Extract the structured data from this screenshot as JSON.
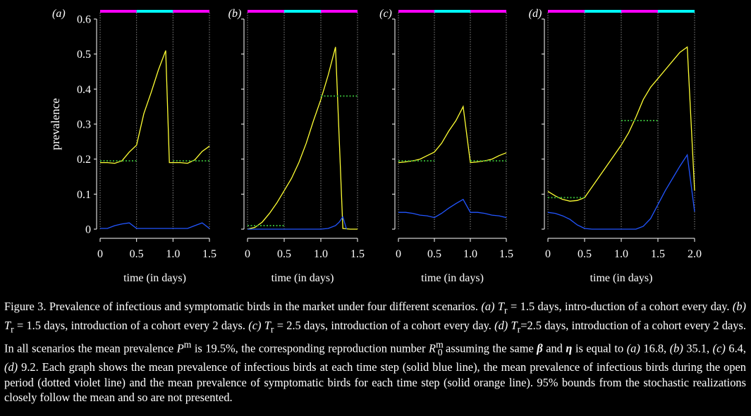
{
  "figure": {
    "ylabel": "prevalence",
    "xlabel": "time (in days)",
    "yticks": [
      "0",
      "0.1",
      "0.2",
      "0.3",
      "0.4",
      "0.5",
      "0.6"
    ],
    "colors": {
      "background": "#000000",
      "symptomatic": "#ffff33",
      "infectious": "#2255ff",
      "open_mean": "#33aa33",
      "bar_magenta": "#ff00ff",
      "bar_cyan": "#00ffff",
      "period_divider": "#aaaaaa"
    }
  },
  "chart_data": [
    {
      "type": "line",
      "panel_label": "(a)",
      "xlim": [
        0,
        1.5
      ],
      "ylim": [
        0,
        0.6
      ],
      "xticks": [
        "0",
        "0.5",
        "1.0",
        "1.5"
      ],
      "period_bars": [
        "magenta",
        "cyan",
        "magenta"
      ],
      "period_dividers": [
        0.5,
        1.0
      ],
      "series": [
        {
          "role": "symptomatic",
          "x": [
            0,
            0.1,
            0.2,
            0.3,
            0.4,
            0.5,
            0.6,
            0.7,
            0.8,
            0.9,
            0.95,
            1.0,
            1.1,
            1.2,
            1.3,
            1.4,
            1.5
          ],
          "y": [
            0.19,
            0.19,
            0.188,
            0.195,
            0.22,
            0.24,
            0.33,
            0.39,
            0.455,
            0.51,
            0.19,
            0.19,
            0.19,
            0.188,
            0.198,
            0.222,
            0.237
          ]
        },
        {
          "role": "infectious",
          "x": [
            0,
            0.1,
            0.2,
            0.3,
            0.4,
            0.5,
            0.6,
            0.8,
            1.0,
            1.2,
            1.3,
            1.4,
            1.5
          ],
          "y": [
            0.002,
            0.002,
            0.01,
            0.015,
            0.018,
            0.002,
            0.002,
            0.002,
            0.002,
            0.002,
            0.01,
            0.018,
            0.002
          ]
        },
        {
          "role": "open_mean",
          "segments": [
            {
              "x": [
                0,
                0.5
              ],
              "y": 0.195
            },
            {
              "x": [
                1.0,
                1.5
              ],
              "y": 0.195
            }
          ]
        }
      ]
    },
    {
      "type": "line",
      "panel_label": "(b)",
      "xlim": [
        0,
        1.5
      ],
      "ylim": [
        0,
        0.6
      ],
      "xticks": [
        "0",
        "0.5",
        "1.0",
        "1.5"
      ],
      "period_bars": [
        "magenta",
        "cyan",
        "magenta"
      ],
      "period_dividers": [
        0.5,
        1.0
      ],
      "series": [
        {
          "role": "symptomatic",
          "x": [
            0,
            0.1,
            0.2,
            0.3,
            0.4,
            0.5,
            0.6,
            0.7,
            0.8,
            0.9,
            1.0,
            1.1,
            1.2,
            1.3,
            1.4,
            1.5
          ],
          "y": [
            0.0,
            0.005,
            0.02,
            0.045,
            0.075,
            0.11,
            0.145,
            0.19,
            0.245,
            0.31,
            0.37,
            0.44,
            0.52,
            0.002,
            0.0,
            0.0
          ]
        },
        {
          "role": "infectious",
          "x": [
            0,
            0.2,
            0.4,
            0.6,
            0.8,
            1.0,
            1.1,
            1.2,
            1.25,
            1.3,
            1.35
          ],
          "y": [
            0.0,
            0.0,
            0.0,
            0.0,
            0.0,
            0.0,
            0.002,
            0.01,
            0.02,
            0.035,
            0.0
          ]
        },
        {
          "role": "open_mean",
          "segments": [
            {
              "x": [
                0,
                0.5
              ],
              "y": 0.01
            },
            {
              "x": [
                1.0,
                1.5
              ],
              "y": 0.38
            }
          ]
        }
      ]
    },
    {
      "type": "line",
      "panel_label": "(c)",
      "xlim": [
        0,
        1.5
      ],
      "ylim": [
        0,
        0.6
      ],
      "xticks": [
        "0",
        "0.5",
        "1.0",
        "1.5"
      ],
      "period_bars": [
        "magenta",
        "cyan",
        "magenta"
      ],
      "period_dividers": [
        0.5,
        1.0
      ],
      "series": [
        {
          "role": "symptomatic",
          "x": [
            0,
            0.1,
            0.2,
            0.3,
            0.4,
            0.5,
            0.6,
            0.7,
            0.8,
            0.9,
            1.0,
            1.1,
            1.2,
            1.3,
            1.4,
            1.5
          ],
          "y": [
            0.19,
            0.192,
            0.195,
            0.2,
            0.21,
            0.22,
            0.245,
            0.28,
            0.31,
            0.35,
            0.19,
            0.192,
            0.195,
            0.2,
            0.21,
            0.218
          ]
        },
        {
          "role": "infectious",
          "x": [
            0,
            0.1,
            0.2,
            0.3,
            0.4,
            0.5,
            0.6,
            0.7,
            0.8,
            0.9,
            1.0,
            1.1,
            1.2,
            1.3,
            1.4,
            1.5
          ],
          "y": [
            0.048,
            0.048,
            0.045,
            0.04,
            0.038,
            0.033,
            0.045,
            0.06,
            0.073,
            0.085,
            0.048,
            0.048,
            0.045,
            0.04,
            0.038,
            0.033
          ]
        },
        {
          "role": "open_mean",
          "segments": [
            {
              "x": [
                0,
                0.5
              ],
              "y": 0.195
            },
            {
              "x": [
                1.0,
                1.5
              ],
              "y": 0.195
            }
          ]
        }
      ]
    },
    {
      "type": "line",
      "panel_label": "(d)",
      "xlim": [
        0,
        2.0
      ],
      "ylim": [
        0,
        0.6
      ],
      "xticks": [
        "0",
        "0.5",
        "1.0",
        "1.5",
        "2.0"
      ],
      "period_bars": [
        "magenta",
        "cyan",
        "magenta",
        "cyan"
      ],
      "period_dividers": [
        0.5,
        1.0,
        1.5
      ],
      "series": [
        {
          "role": "symptomatic",
          "x": [
            0,
            0.1,
            0.2,
            0.3,
            0.4,
            0.5,
            0.6,
            0.7,
            0.8,
            0.9,
            1.0,
            1.1,
            1.2,
            1.3,
            1.4,
            1.5,
            1.6,
            1.7,
            1.8,
            1.9,
            2.0
          ],
          "y": [
            0.108,
            0.095,
            0.085,
            0.08,
            0.082,
            0.09,
            0.12,
            0.15,
            0.18,
            0.21,
            0.24,
            0.275,
            0.32,
            0.37,
            0.405,
            0.43,
            0.455,
            0.48,
            0.505,
            0.52,
            0.11
          ]
        },
        {
          "role": "infectious",
          "x": [
            0,
            0.1,
            0.2,
            0.3,
            0.4,
            0.5,
            0.6,
            0.8,
            1.0,
            1.2,
            1.3,
            1.4,
            1.5,
            1.6,
            1.7,
            1.8,
            1.9,
            2.0
          ],
          "y": [
            0.048,
            0.045,
            0.038,
            0.028,
            0.012,
            0.002,
            0.0,
            0.0,
            0.0,
            0.0,
            0.008,
            0.03,
            0.07,
            0.11,
            0.145,
            0.18,
            0.212,
            0.05
          ]
        },
        {
          "role": "open_mean",
          "segments": [
            {
              "x": [
                0,
                0.5
              ],
              "y": 0.09
            },
            {
              "x": [
                1.0,
                1.5
              ],
              "y": 0.31
            }
          ]
        }
      ]
    }
  ],
  "caption": {
    "parts": [
      "Figure 3. Prevalence of infectious and symptomatic birds in the market under four different scenarios. ",
      "(a)",
      " ",
      "T",
      "r",
      " = 1.5 days, intro-duction of a cohort every day. ",
      "(b)",
      " ",
      "T",
      "r",
      " = 1.5 days, introduction of a cohort every 2 days. ",
      "(c)",
      " ",
      "T",
      "r",
      " = 2.5 days, introduction of a cohort every day. ",
      "(d)",
      " ",
      "T",
      "r",
      "=2.5 days, introduction of a cohort every 2 days. In all scenarios the mean prevalence ",
      "P",
      "m",
      " is 19.5%, the corresponding reproduction number ",
      "R",
      "m",
      "0",
      " assuming the same ",
      "β",
      " and ",
      "η",
      " is equal to ",
      "(a)",
      " 16.8, ",
      "(b)",
      " 35.1, ",
      "(c)",
      " 6.4, ",
      "(d)",
      " 9.2. Each graph shows the mean prevalence of infectious birds at each time step (solid blue line), the mean prevalence of infectious birds during the open period (dotted violet line) and the mean prevalence of symptomatic birds for each time step (solid orange line). 95% bounds from the stochastic realizations closely follow the mean and so are not presented."
    ]
  }
}
